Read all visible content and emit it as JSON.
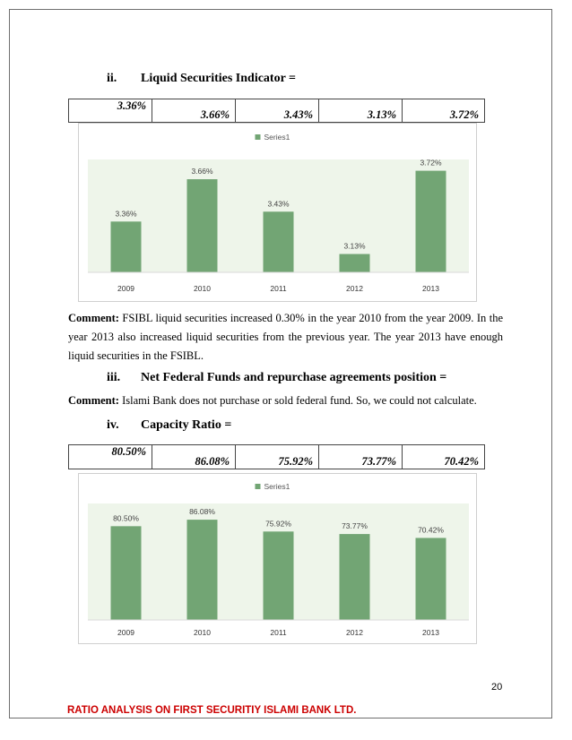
{
  "sections": {
    "liquid": {
      "num": "ii.",
      "title": "Liquid Securities Indicator ="
    },
    "federal": {
      "num": "iii.",
      "title": "Net Federal Funds and repurchase agreements position ="
    },
    "capacity": {
      "num": "iv.",
      "title": "Capacity Ratio ="
    }
  },
  "tables": {
    "liquid": [
      "3.36%",
      "3.66%",
      "3.43%",
      "3.13%",
      "3.72%"
    ],
    "capacity": [
      "80.50%",
      "86.08%",
      "75.92%",
      "73.77%",
      "70.42%"
    ]
  },
  "comments": {
    "liquid": {
      "label": "Comment:",
      "text": " FSIBL liquid securities increased 0.30% in the year 2010 from the year 2009. In the year 2013 also increased liquid securities from the previous year. The year 2013 have enough liquid securities in the FSIBL."
    },
    "federal": {
      "label": "Comment:",
      "text": " Islami Bank does not purchase or sold federal fund. So, we could not calculate."
    }
  },
  "chart_data": [
    {
      "type": "bar",
      "categories": [
        "2009",
        "2010",
        "2011",
        "2012",
        "2013"
      ],
      "series": [
        {
          "name": "Series1",
          "values": [
            3.36,
            3.66,
            3.43,
            3.13,
            3.72
          ]
        }
      ],
      "data_labels": [
        "3.36%",
        "3.66%",
        "3.43%",
        "3.13%",
        "3.72%"
      ],
      "ylim": [
        3.0,
        3.8
      ],
      "legend": "top-center",
      "grid": false,
      "colors": {
        "bar": "#72a574",
        "plot_bg": "#eef5ea"
      }
    },
    {
      "type": "bar",
      "categories": [
        "2009",
        "2010",
        "2011",
        "2012",
        "2013"
      ],
      "series": [
        {
          "name": "Series1",
          "values": [
            80.5,
            86.08,
            75.92,
            73.77,
            70.42
          ]
        }
      ],
      "data_labels": [
        "80.50%",
        "86.08%",
        "75.92%",
        "73.77%",
        "70.42%"
      ],
      "ylim": [
        0,
        100
      ],
      "legend": "top-center",
      "grid": false,
      "colors": {
        "bar": "#72a574",
        "plot_bg": "#eef5ea"
      }
    }
  ],
  "footer": {
    "page_number": "20",
    "title": "RATIO ANALYSIS ON FIRST SECURITIY ISLAMI BANK LTD."
  }
}
